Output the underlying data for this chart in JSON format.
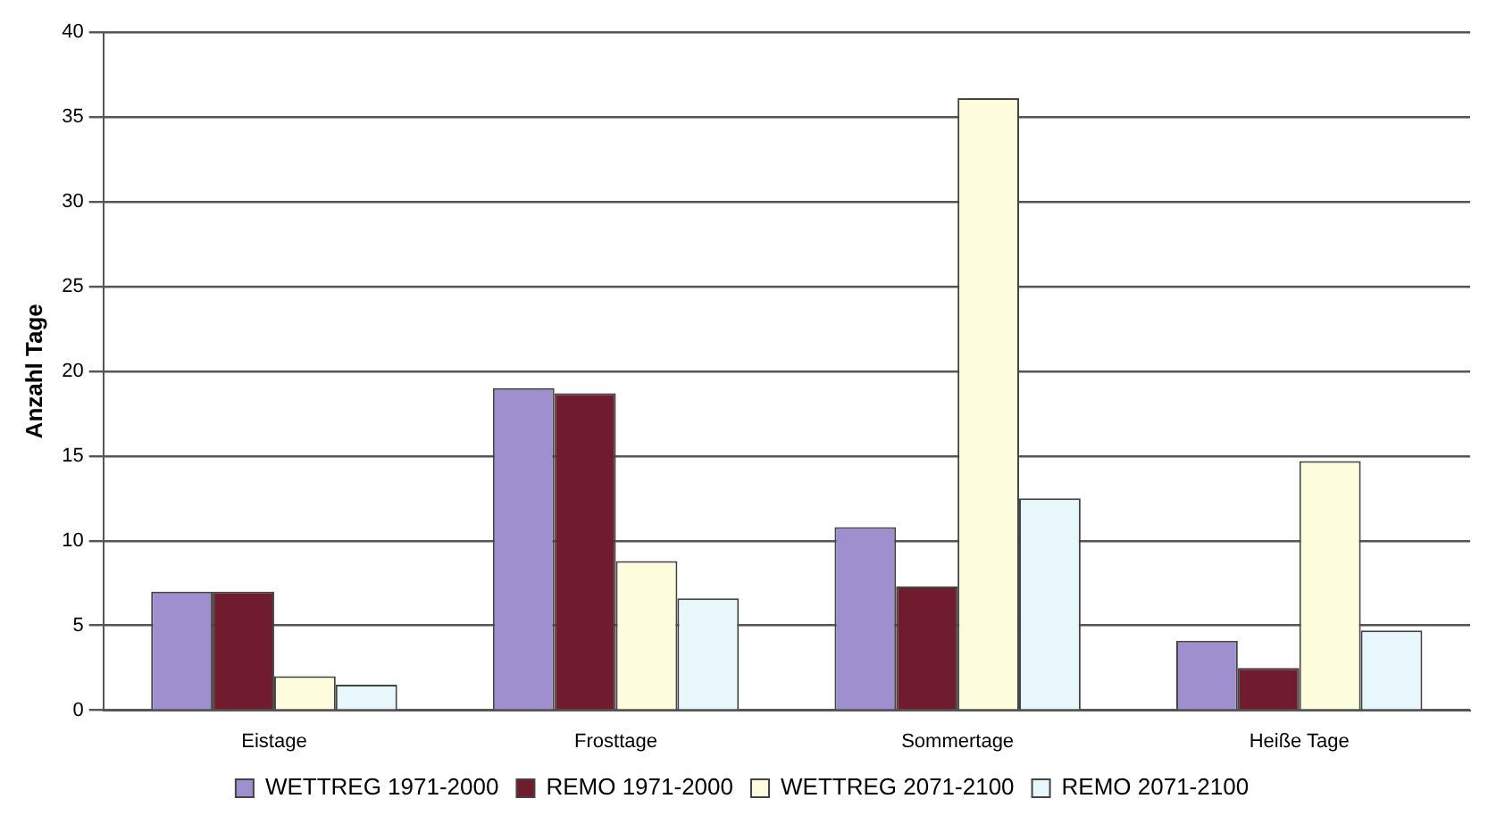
{
  "chart_data": {
    "type": "bar",
    "ylabel": "Anzahl Tage",
    "categories": [
      "Eistage",
      "Frosttage",
      "Sommertage",
      "Heiße Tage"
    ],
    "series": [
      {
        "name": "WETTREG 1971-2000",
        "color": "#9f8fcf",
        "values": [
          7,
          19,
          10.8,
          4.1
        ]
      },
      {
        "name": "REMO 1971-2000",
        "color": "#701c2e",
        "values": [
          7,
          18.7,
          7.3,
          2.5
        ]
      },
      {
        "name": "WETTREG 2071-2100",
        "color": "#fdfcdc",
        "values": [
          2,
          8.8,
          36.1,
          14.7
        ]
      },
      {
        "name": "REMO 2071-2100",
        "color": "#e8f7fb",
        "values": [
          1.5,
          6.6,
          12.5,
          4.7
        ]
      }
    ],
    "ylim": [
      0,
      40
    ],
    "yticks": [
      0,
      5,
      10,
      15,
      20,
      25,
      30,
      35,
      40
    ],
    "grid": "y",
    "legend": "bottom"
  }
}
